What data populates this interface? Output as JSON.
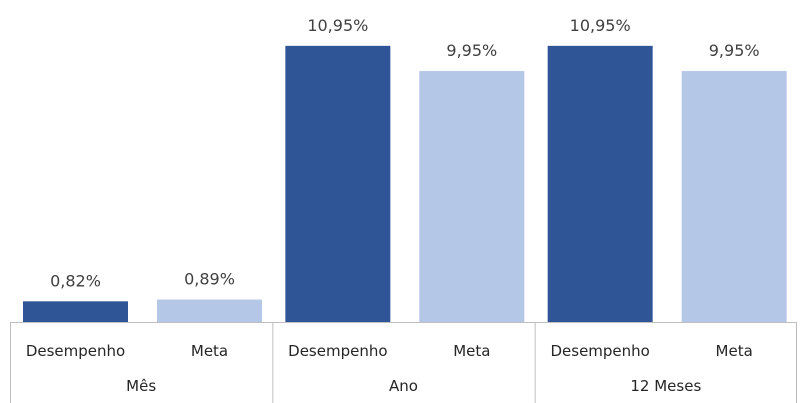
{
  "chart_data": {
    "type": "bar",
    "title": "",
    "xlabel": "",
    "ylabel": "",
    "ylim": [
      0,
      12
    ],
    "groups": [
      {
        "label": "Mês",
        "bars": [
          {
            "category": "Desempenho",
            "value": 0.82,
            "label": "0,82%",
            "color": "#2F5597"
          },
          {
            "category": "Meta",
            "value": 0.89,
            "label": "0,89%",
            "color": "#B4C7E7"
          }
        ]
      },
      {
        "label": "Ano",
        "bars": [
          {
            "category": "Desempenho",
            "value": 10.95,
            "label": "10,95%",
            "color": "#2F5597"
          },
          {
            "category": "Meta",
            "value": 9.95,
            "label": "9,95%",
            "color": "#B4C7E7"
          }
        ]
      },
      {
        "label": "12 Meses",
        "bars": [
          {
            "category": "Desempenho",
            "value": 10.95,
            "label": "10,95%",
            "color": "#2F5597"
          },
          {
            "category": "Meta",
            "value": 9.95,
            "label": "9,95%",
            "color": "#B4C7E7"
          }
        ]
      }
    ]
  }
}
